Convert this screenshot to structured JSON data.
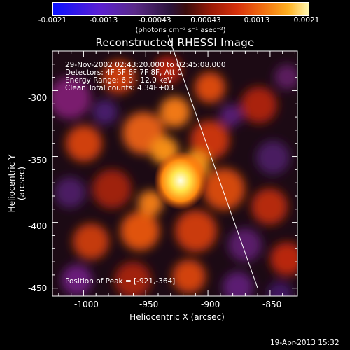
{
  "colorbar": {
    "ticks": [
      "-0.0021",
      "-0.0013",
      "-0.00043",
      "0.00043",
      "0.0013",
      "0.0021"
    ],
    "units": "(photons cm⁻² s⁻¹ asec⁻²)"
  },
  "chart_data": {
    "type": "heatmap",
    "title": "Reconstructed RHESSI Image",
    "xlabel": "Heliocentric X (arcsec)",
    "ylabel": "Heliocentric Y (arcsec)",
    "xlim": [
      -1025,
      -828
    ],
    "ylim": [
      -456,
      -270
    ],
    "x_ticks": [
      -1000,
      -950,
      -900,
      -850
    ],
    "y_ticks": [
      -300,
      -350,
      -400,
      -450
    ],
    "color_range": [
      -0.0021,
      0.0021
    ],
    "peak": {
      "x": -921,
      "y": -364
    },
    "limb_line": {
      "x": [
        -932,
        -860
      ],
      "y": [
        -258,
        -450
      ]
    },
    "annotations": [
      "29-Nov-2002 02:43:20.000 to 02:45:08.000",
      "Detectors: 4F 5F 6F 7F 8F, Att 0",
      "Energy Range: 6.0 - 12.0 keV",
      "Clean     Total counts: 4.34E+03"
    ],
    "peak_label": "Position of Peak = [-921,-364]"
  },
  "footer": {
    "date": "19-Apr-2013 15:32"
  }
}
